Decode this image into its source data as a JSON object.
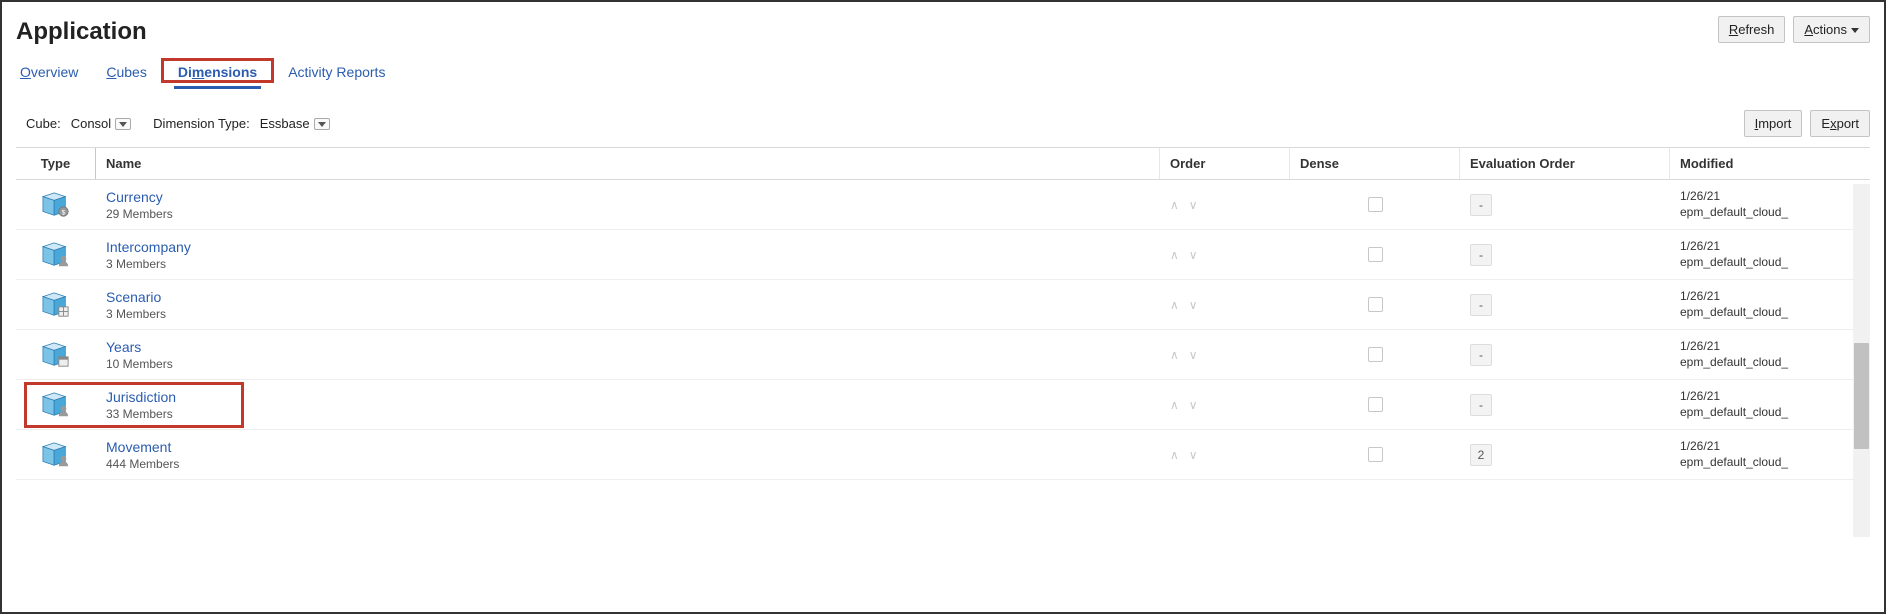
{
  "page": {
    "title": "Application"
  },
  "toolbar": {
    "refresh_label": "Refresh",
    "refresh_hotkey_prefix": "R",
    "actions_label": "Actions",
    "actions_hotkey_prefix": "A"
  },
  "tabs": {
    "items": [
      {
        "label": "Overview",
        "hotkey_char": "O",
        "active": false
      },
      {
        "label": "Cubes",
        "hotkey_char": "C",
        "active": false
      },
      {
        "label": "Dimensions",
        "hotkey_char": "m",
        "active": true,
        "boxed": true
      },
      {
        "label": "Activity Reports",
        "hotkey_char": "",
        "active": false
      }
    ]
  },
  "filters": {
    "cube_label": "Cube:",
    "cube_value": "Consol",
    "dimtype_label": "Dimension Type:",
    "dimtype_value": "Essbase"
  },
  "actions": {
    "import_label": "Import",
    "import_hotkey_prefix": "I",
    "export_label": "Export",
    "export_hotkey_prefix": "x"
  },
  "columns": {
    "type": "Type",
    "name": "Name",
    "order": "Order",
    "dense": "Dense",
    "eval": "Evaluation Order",
    "modified": "Modified"
  },
  "cube_icon_colors": {
    "top": "#cfe8f7",
    "left": "#7cc3e8",
    "right": "#4aa8d8",
    "stroke": "#2d7db3",
    "badge_fill": "#9a9a9a"
  },
  "rows": [
    {
      "name": "Currency",
      "members": "29 Members",
      "eval": "-",
      "modified_date": "1/26/21",
      "modified_by": "epm_default_cloud_",
      "badge": "coin",
      "highlighted": false
    },
    {
      "name": "Intercompany",
      "members": "3 Members",
      "eval": "-",
      "modified_date": "1/26/21",
      "modified_by": "epm_default_cloud_",
      "badge": "person",
      "highlighted": false
    },
    {
      "name": "Scenario",
      "members": "3 Members",
      "eval": "-",
      "modified_date": "1/26/21",
      "modified_by": "epm_default_cloud_",
      "badge": "grid",
      "highlighted": false
    },
    {
      "name": "Years",
      "members": "10 Members",
      "eval": "-",
      "modified_date": "1/26/21",
      "modified_by": "epm_default_cloud_",
      "badge": "calendar",
      "highlighted": false
    },
    {
      "name": "Jurisdiction",
      "members": "33 Members",
      "eval": "-",
      "modified_date": "1/26/21",
      "modified_by": "epm_default_cloud_",
      "badge": "person",
      "highlighted": true
    },
    {
      "name": "Movement",
      "members": "444 Members",
      "eval": "2",
      "modified_date": "1/26/21",
      "modified_by": "epm_default_cloud_",
      "badge": "person",
      "highlighted": false
    }
  ],
  "scrollbar": {
    "thumb_top_pct": 45,
    "thumb_height_pct": 30
  }
}
